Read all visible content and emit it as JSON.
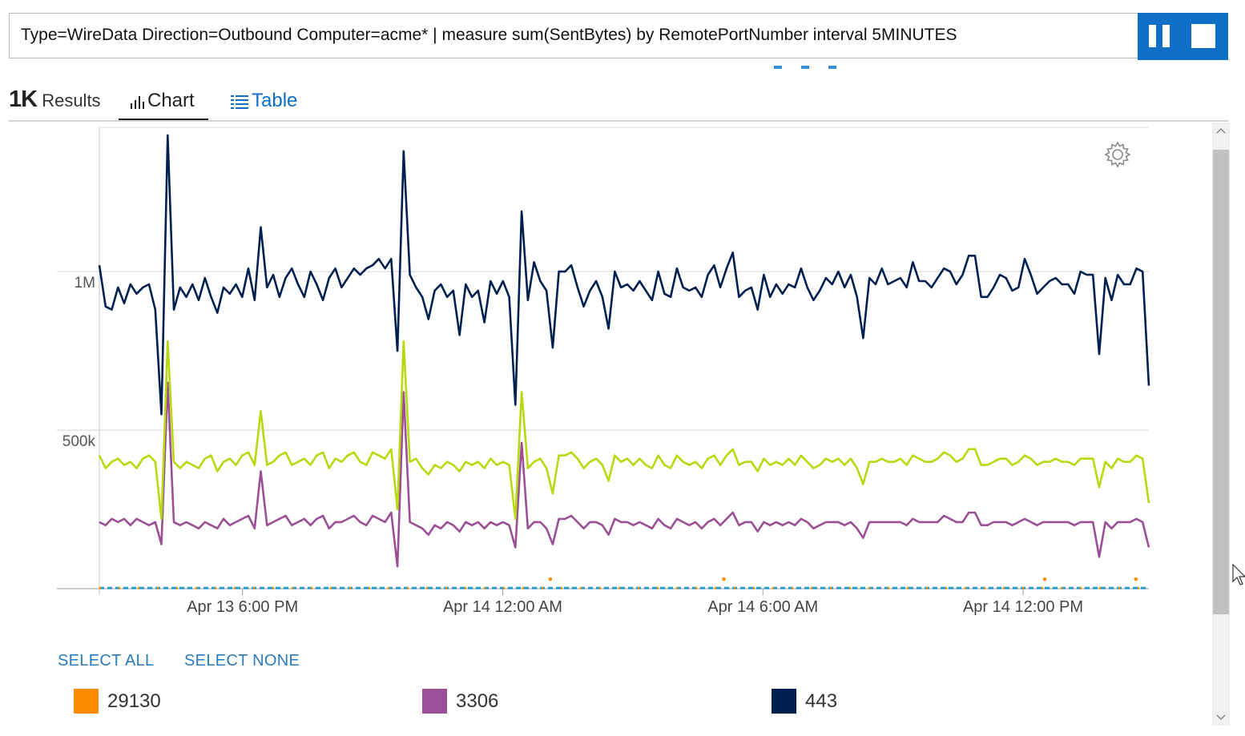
{
  "query": {
    "text": "Type=WireData Direction=Outbound Computer=acme* | measure sum(SentBytes) by RemotePortNumber interval 5MINUTES",
    "pause_icon": "pause-icon",
    "stop_icon": "stop-icon"
  },
  "tabs": {
    "count": "1K",
    "results_label": "Results",
    "chart_label": "Chart",
    "table_label": "Table"
  },
  "legend_controls": {
    "select_all": "SELECT ALL",
    "select_none": "SELECT NONE"
  },
  "legend": [
    {
      "name": "29130",
      "color": "#ff8c00"
    },
    {
      "name": "3306",
      "color": "#9b4f96"
    },
    {
      "name": "443",
      "color": "#002050"
    }
  ],
  "colors": {
    "accent": "#0f6fc6",
    "series_443": "#002050",
    "series_lime": "#b8d90f",
    "series_3306": "#9b4f96",
    "series_29130": "#ff8c00",
    "series_teal": "#2aa0c8"
  },
  "chart_data": {
    "type": "line",
    "y_ticks": [
      "1M",
      "500k"
    ],
    "y_tick_values": [
      1000000,
      500000
    ],
    "ylim": [
      0,
      1450000
    ],
    "x_ticks": [
      "Apr 13 6:00 PM",
      "Apr 14 12:00 AM",
      "Apr 14 6:00 AM",
      "Apr 14 12:00 PM"
    ],
    "x_tick_hours": [
      18,
      24,
      30,
      36
    ],
    "xlim_hours": [
      14.7,
      38.9
    ],
    "grid": true,
    "legend_position": "bottom",
    "series": [
      {
        "name": "443",
        "color": "#002050",
        "values": [
          1020000,
          890000,
          880000,
          950000,
          900000,
          960000,
          930000,
          950000,
          960000,
          880000,
          550000,
          1430000,
          880000,
          950000,
          920000,
          960000,
          910000,
          980000,
          920000,
          870000,
          950000,
          930000,
          960000,
          920000,
          1010000,
          910000,
          1140000,
          950000,
          990000,
          920000,
          980000,
          1010000,
          960000,
          920000,
          1000000,
          960000,
          910000,
          980000,
          1010000,
          950000,
          980000,
          1010000,
          990000,
          1010000,
          1020000,
          1040000,
          1010000,
          1040000,
          750000,
          1380000,
          990000,
          950000,
          920000,
          850000,
          940000,
          960000,
          920000,
          940000,
          800000,
          960000,
          920000,
          940000,
          840000,
          970000,
          930000,
          970000,
          920000,
          580000,
          1190000,
          910000,
          1030000,
          970000,
          940000,
          760000,
          1000000,
          1000000,
          1020000,
          950000,
          890000,
          940000,
          970000,
          920000,
          820000,
          1000000,
          950000,
          960000,
          940000,
          970000,
          940000,
          910000,
          1000000,
          930000,
          920000,
          1010000,
          950000,
          940000,
          950000,
          920000,
          990000,
          1020000,
          950000,
          1010000,
          1060000,
          920000,
          940000,
          950000,
          880000,
          990000,
          920000,
          960000,
          930000,
          960000,
          950000,
          1010000,
          950000,
          910000,
          940000,
          980000,
          960000,
          1000000,
          950000,
          990000,
          920000,
          790000,
          980000,
          960000,
          1010000,
          960000,
          970000,
          980000,
          950000,
          1030000,
          970000,
          970000,
          950000,
          980000,
          1010000,
          1000000,
          960000,
          990000,
          1050000,
          1050000,
          920000,
          920000,
          950000,
          990000,
          980000,
          940000,
          950000,
          1040000,
          990000,
          930000,
          950000,
          970000,
          980000,
          960000,
          960000,
          930000,
          1000000,
          990000,
          990000,
          740000,
          980000,
          910000,
          990000,
          960000,
          960000,
          1010000,
          1000000,
          640000
        ]
      },
      {
        "name": "",
        "color": "#b8d90f",
        "values": [
          420000,
          380000,
          400000,
          410000,
          390000,
          400000,
          380000,
          410000,
          420000,
          400000,
          220000,
          780000,
          400000,
          380000,
          400000,
          390000,
          380000,
          410000,
          420000,
          370000,
          400000,
          410000,
          390000,
          420000,
          430000,
          390000,
          560000,
          390000,
          400000,
          420000,
          430000,
          390000,
          400000,
          410000,
          390000,
          420000,
          430000,
          380000,
          410000,
          400000,
          420000,
          430000,
          400000,
          390000,
          430000,
          420000,
          410000,
          440000,
          250000,
          780000,
          400000,
          410000,
          380000,
          360000,
          390000,
          380000,
          400000,
          390000,
          370000,
          400000,
          390000,
          400000,
          380000,
          410000,
          390000,
          400000,
          390000,
          220000,
          620000,
          380000,
          400000,
          410000,
          380000,
          300000,
          420000,
          420000,
          430000,
          410000,
          380000,
          400000,
          410000,
          390000,
          340000,
          420000,
          400000,
          410000,
          390000,
          410000,
          390000,
          380000,
          420000,
          390000,
          380000,
          420000,
          400000,
          390000,
          400000,
          380000,
          410000,
          420000,
          390000,
          420000,
          440000,
          390000,
          400000,
          400000,
          370000,
          410000,
          390000,
          400000,
          390000,
          410000,
          390000,
          420000,
          400000,
          380000,
          390000,
          410000,
          400000,
          410000,
          390000,
          410000,
          380000,
          330000,
          400000,
          400000,
          410000,
          400000,
          400000,
          410000,
          390000,
          420000,
          410000,
          400000,
          400000,
          410000,
          430000,
          420000,
          400000,
          410000,
          440000,
          440000,
          390000,
          390000,
          400000,
          410000,
          410000,
          390000,
          400000,
          420000,
          410000,
          390000,
          400000,
          400000,
          410000,
          400000,
          400000,
          390000,
          410000,
          410000,
          410000,
          320000,
          400000,
          380000,
          410000,
          400000,
          400000,
          420000,
          410000,
          270000
        ]
      },
      {
        "name": "3306",
        "color": "#9b4f96",
        "values": [
          210000,
          200000,
          220000,
          210000,
          220000,
          200000,
          220000,
          210000,
          200000,
          210000,
          140000,
          650000,
          210000,
          200000,
          210000,
          200000,
          190000,
          210000,
          200000,
          190000,
          220000,
          200000,
          210000,
          220000,
          230000,
          190000,
          370000,
          200000,
          210000,
          220000,
          230000,
          200000,
          210000,
          220000,
          200000,
          220000,
          230000,
          190000,
          210000,
          210000,
          220000,
          230000,
          210000,
          200000,
          230000,
          220000,
          210000,
          240000,
          70000,
          620000,
          210000,
          200000,
          190000,
          170000,
          200000,
          190000,
          210000,
          200000,
          180000,
          210000,
          200000,
          210000,
          190000,
          210000,
          200000,
          210000,
          200000,
          130000,
          460000,
          190000,
          210000,
          210000,
          190000,
          140000,
          220000,
          220000,
          230000,
          210000,
          190000,
          210000,
          210000,
          200000,
          170000,
          220000,
          210000,
          210000,
          200000,
          210000,
          200000,
          190000,
          220000,
          200000,
          190000,
          220000,
          210000,
          200000,
          210000,
          190000,
          210000,
          220000,
          200000,
          220000,
          240000,
          200000,
          210000,
          210000,
          180000,
          210000,
          200000,
          210000,
          200000,
          210000,
          200000,
          220000,
          210000,
          190000,
          200000,
          210000,
          210000,
          210000,
          200000,
          210000,
          190000,
          160000,
          210000,
          210000,
          210000,
          210000,
          210000,
          210000,
          200000,
          220000,
          210000,
          210000,
          210000,
          210000,
          230000,
          220000,
          210000,
          210000,
          240000,
          240000,
          200000,
          200000,
          210000,
          210000,
          210000,
          200000,
          210000,
          220000,
          210000,
          200000,
          210000,
          210000,
          210000,
          210000,
          210000,
          200000,
          210000,
          210000,
          210000,
          100000,
          210000,
          190000,
          210000,
          210000,
          210000,
          220000,
          210000,
          130000
        ]
      },
      {
        "name": "29130",
        "color": "#ff8c00",
        "values": [
          2000,
          2000,
          2000,
          2000,
          2000,
          2000,
          2000,
          2000,
          2000,
          2000,
          2000,
          2000,
          2000,
          2000,
          2000,
          2000,
          2000,
          2000,
          2000,
          2000,
          2000,
          2000,
          2000,
          2000,
          2000,
          2000,
          2000,
          2000,
          2000,
          2000,
          2000,
          2000,
          2000,
          2000,
          2000,
          2000,
          2000,
          2000,
          2000,
          2000,
          2000,
          2000,
          2000,
          2000,
          2000,
          2000,
          2000,
          2000,
          2000,
          2000,
          2000,
          2000,
          2000,
          2000,
          2000,
          2000,
          2000,
          2000,
          2000,
          2000,
          2000,
          2000,
          2000,
          2000,
          2000,
          2000,
          2000,
          2000,
          2000,
          2000,
          2000,
          2000,
          2000,
          2000,
          2000,
          2000,
          2000,
          2000,
          2000,
          2000,
          2000,
          2000,
          2000,
          2000,
          2000,
          2000,
          2000,
          2000,
          2000,
          2000,
          2000,
          2000,
          2000,
          2000,
          2000,
          2000,
          2000,
          2000,
          2000,
          2000,
          2000,
          2000,
          2000,
          2000,
          2000,
          2000,
          2000,
          2000,
          2000,
          2000,
          2000,
          2000,
          2000,
          2000,
          2000,
          2000,
          2000,
          2000,
          2000,
          2000,
          2000,
          2000,
          2000,
          2000,
          2000,
          2000,
          2000,
          2000,
          2000,
          2000,
          2000,
          2000,
          2000,
          2000,
          2000,
          2000,
          2000,
          2000,
          2000,
          2000,
          2000,
          2000,
          2000,
          2000,
          2000,
          2000,
          2000,
          2000,
          2000,
          2000,
          2000,
          2000,
          2000,
          2000,
          2000,
          2000,
          2000,
          2000,
          2000,
          2000,
          2000,
          2000,
          2000,
          2000,
          2000,
          2000,
          2000,
          2000,
          2000,
          2000,
          2000,
          2000,
          2000,
          2000
        ],
        "outliers": [
          [
            25.1,
            30000
          ],
          [
            29.1,
            30000
          ],
          [
            36.5,
            30000
          ],
          [
            38.6,
            30000
          ]
        ]
      }
    ]
  }
}
